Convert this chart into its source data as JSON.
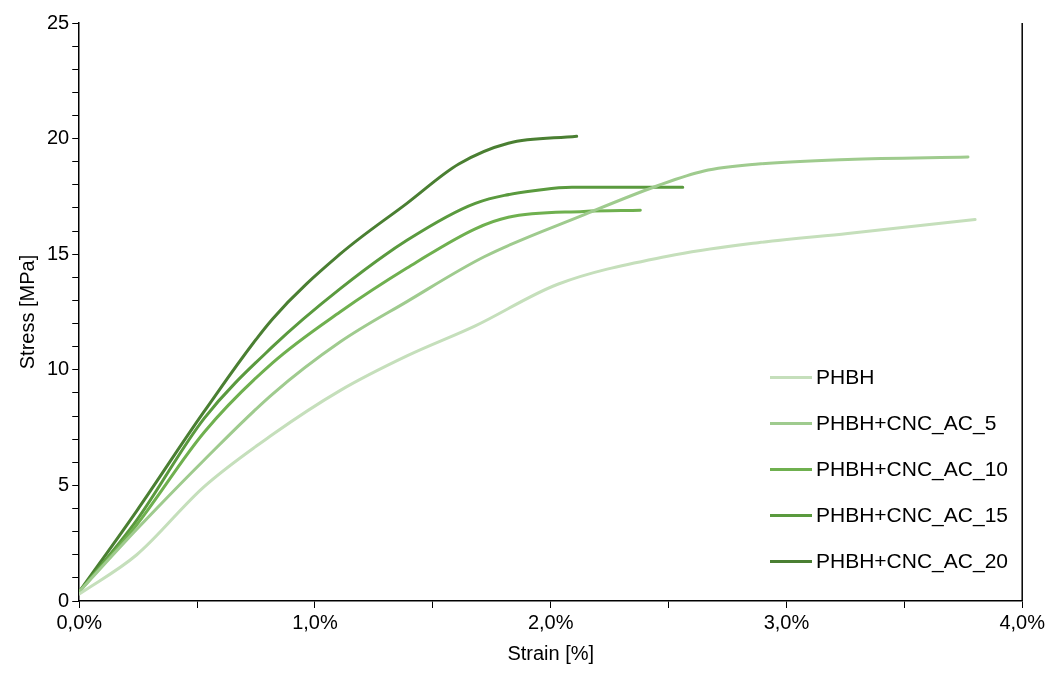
{
  "chart_data": {
    "type": "line",
    "xlabel": "Strain [%]",
    "ylabel": "Stress [MPa]",
    "xlim": [
      0,
      4
    ],
    "ylim": [
      0,
      25
    ],
    "xticks": [
      {
        "value": 0,
        "label": "0,0%"
      },
      {
        "value": 0.5,
        "label": null
      },
      {
        "value": 1,
        "label": "1,0%"
      },
      {
        "value": 1.5,
        "label": null
      },
      {
        "value": 2,
        "label": "2,0%"
      },
      {
        "value": 2.5,
        "label": null
      },
      {
        "value": 3,
        "label": "3,0%"
      },
      {
        "value": 3.5,
        "label": null
      },
      {
        "value": 4,
        "label": "4,0%"
      }
    ],
    "yticks": [
      0,
      {
        "value": 1,
        "label": null
      },
      {
        "value": 2,
        "label": null
      },
      {
        "value": 3,
        "label": null
      },
      {
        "value": 4,
        "label": null
      },
      5,
      {
        "value": 6,
        "label": null
      },
      {
        "value": 7,
        "label": null
      },
      {
        "value": 8,
        "label": null
      },
      {
        "value": 9,
        "label": null
      },
      10,
      {
        "value": 11,
        "label": null
      },
      {
        "value": 12,
        "label": null
      },
      {
        "value": 13,
        "label": null
      },
      {
        "value": 14,
        "label": null
      },
      15,
      {
        "value": 16,
        "label": null
      },
      {
        "value": 17,
        "label": null
      },
      {
        "value": 18,
        "label": null
      },
      {
        "value": 19,
        "label": null
      },
      20,
      {
        "value": 21,
        "label": null
      },
      {
        "value": 22,
        "label": null
      },
      {
        "value": 23,
        "label": null
      },
      {
        "value": 24,
        "label": null
      },
      25
    ],
    "grid": false,
    "legend": "bottom right",
    "marker": "none",
    "line_style": "solid",
    "series": [
      {
        "name": "PHBH",
        "color": "#c5dfbb",
        "x": [
          0,
          0.244,
          0.53,
          0.82,
          1.106,
          1.39,
          1.68,
          2.03,
          2.49,
          2.88,
          3.26,
          3.8
        ],
        "values": [
          0.3,
          2.0,
          4.95,
          7.2,
          9.1,
          10.6,
          11.9,
          13.7,
          14.9,
          15.5,
          15.9,
          16.5
        ]
      },
      {
        "name": "PHBH+CNC_AC_5",
        "color": "#9fcb8e",
        "x": [
          0,
          0.244,
          0.53,
          0.82,
          1.106,
          1.39,
          1.72,
          2.14,
          2.45,
          2.65,
          2.88,
          3.26,
          3.77
        ],
        "values": [
          0.4,
          3.1,
          6.1,
          8.95,
          11.2,
          12.95,
          14.9,
          16.7,
          17.95,
          18.6,
          18.9,
          19.1,
          19.2
        ]
      },
      {
        "name": "PHBH+CNC_AC_10",
        "color": "#6fb04f",
        "x": [
          0,
          0.244,
          0.53,
          0.82,
          1.106,
          1.39,
          1.68,
          1.82,
          2.14,
          2.38
        ],
        "values": [
          0.4,
          3.3,
          7.3,
          10.3,
          12.5,
          14.4,
          16.1,
          16.6,
          16.85,
          16.9
        ]
      },
      {
        "name": "PHBH+CNC_AC_15",
        "color": "#5a9a3e",
        "x": [
          0,
          0.244,
          0.53,
          0.82,
          1.106,
          1.39,
          1.68,
          1.97,
          2.09,
          2.56
        ],
        "values": [
          0.4,
          3.5,
          7.9,
          11.0,
          13.5,
          15.6,
          17.2,
          17.8,
          17.9,
          17.9
        ]
      },
      {
        "name": "PHBH+CNC_AC_20",
        "color": "#4a7f32",
        "x": [
          0,
          0.244,
          0.53,
          0.82,
          1.106,
          1.39,
          1.61,
          1.82,
          2.11
        ],
        "values": [
          0.4,
          3.9,
          8.2,
          12.2,
          15.0,
          17.2,
          18.9,
          19.8,
          20.1
        ]
      }
    ]
  }
}
